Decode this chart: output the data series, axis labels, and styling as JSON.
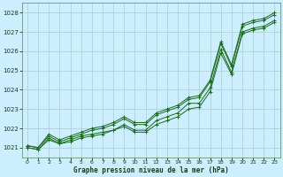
{
  "title": "Graphe pression niveau de la mer (hPa)",
  "background_color": "#cceeff",
  "grid_color": "#aacccc",
  "line_color": "#1a6b1a",
  "marker_color": "#1a6b1a",
  "xlim": [
    -0.5,
    23.5
  ],
  "ylim": [
    1020.5,
    1028.5
  ],
  "yticks": [
    1021,
    1022,
    1023,
    1024,
    1025,
    1026,
    1027,
    1028
  ],
  "xticks": [
    0,
    1,
    2,
    3,
    4,
    5,
    6,
    7,
    8,
    9,
    10,
    11,
    12,
    13,
    14,
    15,
    16,
    17,
    18,
    19,
    20,
    21,
    22,
    23
  ],
  "series": [
    [
      1021.0,
      1020.9,
      1021.5,
      1021.2,
      1021.4,
      1021.6,
      1021.7,
      1021.8,
      1021.9,
      1022.2,
      1021.9,
      1021.9,
      1022.4,
      1022.6,
      1022.8,
      1023.3,
      1023.3,
      1024.1,
      1026.1,
      1024.9,
      1027.0,
      1027.2,
      1027.3,
      1027.6
    ],
    [
      1021.0,
      1020.9,
      1021.4,
      1021.2,
      1021.3,
      1021.5,
      1021.6,
      1021.7,
      1021.9,
      1022.1,
      1021.8,
      1021.8,
      1022.2,
      1022.4,
      1022.6,
      1023.0,
      1023.1,
      1023.9,
      1025.9,
      1024.8,
      1026.9,
      1027.1,
      1027.2,
      1027.5
    ],
    [
      1021.1,
      1021.0,
      1021.6,
      1021.3,
      1021.5,
      1021.7,
      1021.9,
      1022.0,
      1022.2,
      1022.5,
      1022.2,
      1022.2,
      1022.7,
      1022.9,
      1023.1,
      1023.5,
      1023.6,
      1024.4,
      1026.4,
      1025.2,
      1027.3,
      1027.5,
      1027.6,
      1027.9
    ],
    [
      1021.1,
      1021.0,
      1021.7,
      1021.4,
      1021.6,
      1021.8,
      1022.0,
      1022.1,
      1022.3,
      1022.6,
      1022.3,
      1022.3,
      1022.8,
      1023.0,
      1023.2,
      1023.6,
      1023.7,
      1024.5,
      1026.5,
      1025.3,
      1027.4,
      1027.6,
      1027.7,
      1028.0
    ]
  ]
}
